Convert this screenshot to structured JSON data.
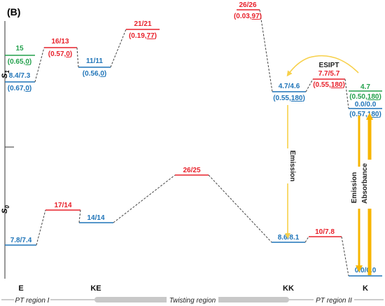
{
  "panel_label": "(B)",
  "axis": {
    "s1": "S",
    "s1_sub": "1",
    "s0": "S",
    "s0_sub": "0"
  },
  "colors": {
    "red": "#e8202a",
    "blue": "#1f74b8",
    "green": "#22a04b",
    "yellow": "#f7b500",
    "bar": "#c8c8c8"
  },
  "levels": {
    "E_s1_green": {
      "top": "15",
      "bottom": "(0.65,0)",
      "bottom_plain": "(0.65,",
      "bottom_ul": "0",
      "bottom_end": ")"
    },
    "E_s1_blue": {
      "top": "8.4/7.3",
      "bottom": "(0.67,0)",
      "bottom_plain": "(0.67,",
      "bottom_ul": "0",
      "bottom_end": ")"
    },
    "TS1_s1": {
      "top": "16/13",
      "bottom": "(0.57,0)",
      "bottom_plain": "(0.57,",
      "bottom_ul": "0",
      "bottom_end": ")"
    },
    "KE_s1": {
      "top": "11/11",
      "bottom": "(0.56,0)",
      "bottom_plain": "(0.56,",
      "bottom_ul": "0",
      "bottom_end": ")"
    },
    "TS2_s1": {
      "top": "21/21",
      "bottom": "(0.19,77)",
      "bottom_plain": "(0.19,",
      "bottom_ul": "77",
      "bottom_end": ")"
    },
    "TS3_s1": {
      "top": "26/26",
      "bottom": "(0.03,97)",
      "bottom_plain": "(0.03,",
      "bottom_ul": "97",
      "bottom_end": ")"
    },
    "KK_s1": {
      "top": "4.7/4.6",
      "bottom": "(0.55,180)",
      "bottom_plain": "(0.55,",
      "bottom_ul": "180",
      "bottom_end": ")"
    },
    "TS4_s1": {
      "top": "7.7/5.7",
      "bottom": "(0.55,180)",
      "bottom_plain": "(0.55,",
      "bottom_ul": "180",
      "bottom_end": ")"
    },
    "K_s1_green": {
      "top": "4.7",
      "bottom": "(0.50,180)",
      "bottom_plain": "(0.50,",
      "bottom_ul": "180",
      "bottom_end": ")"
    },
    "K_s1_blue": {
      "top": "0.0/0.0",
      "bottom": "(0.57,180)",
      "bottom_plain": "(0.57,",
      "bottom_ul": "180",
      "bottom_end": ")"
    },
    "E_s0": {
      "top": "7.8/7.4"
    },
    "TS1_s0": {
      "top": "17/14"
    },
    "KE_s0": {
      "top": "14/14"
    },
    "TS2_s0": {
      "top": "26/25"
    },
    "KK_s0": {
      "top": "8.6/8.1"
    },
    "TS3_s0": {
      "top": "10/7.8"
    },
    "K_s0": {
      "top": "0.0/0.0"
    }
  },
  "arrows": {
    "esipt": "ESIPT",
    "emission": "Emission",
    "emission2": "Emission",
    "absorbance": "Absorbance"
  },
  "states": {
    "E": "E",
    "KE": "KE",
    "KK": "KK",
    "K": "K"
  },
  "regions": {
    "pt1": "PT region I",
    "twist": "Twisting region",
    "pt2": "PT region II"
  }
}
